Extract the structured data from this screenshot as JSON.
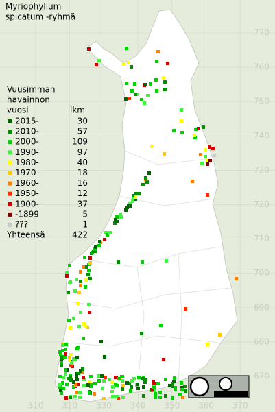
{
  "title": [
    "Myriophyllum",
    "spicatum -ryhmä"
  ],
  "legend": {
    "heading": [
      "Vuusimman",
      "havainnon"
    ],
    "col_year": "vuosi",
    "col_count": "lkm",
    "rows": [
      {
        "label": "2015-",
        "count": 30,
        "color": "#006400"
      },
      {
        "label": "2010-",
        "count": 57,
        "color": "#009000"
      },
      {
        "label": "2000-",
        "count": 109,
        "color": "#00d000"
      },
      {
        "label": "1990-",
        "count": 97,
        "color": "#44f044"
      },
      {
        "label": "1980-",
        "count": 40,
        "color": "#ffff00"
      },
      {
        "label": "1970-",
        "count": 18,
        "color": "#ffc800"
      },
      {
        "label": "1960-",
        "count": 16,
        "color": "#ff8000"
      },
      {
        "label": "1950-",
        "count": 12,
        "color": "#ff3000"
      },
      {
        "label": "1900-",
        "count": 37,
        "color": "#d00000"
      },
      {
        "label": "-1899",
        "count": 5,
        "color": "#800000"
      },
      {
        "label": "???",
        "count": 1,
        "color": "#c8c8c8"
      }
    ],
    "total_label": "Yhteensä",
    "total": 422
  },
  "axes": {
    "y_labels": [
      770,
      760,
      750,
      740,
      730,
      720,
      710,
      700,
      690,
      680,
      670
    ],
    "x_labels": [
      310,
      320,
      330,
      340,
      350,
      360,
      370
    ]
  }
}
